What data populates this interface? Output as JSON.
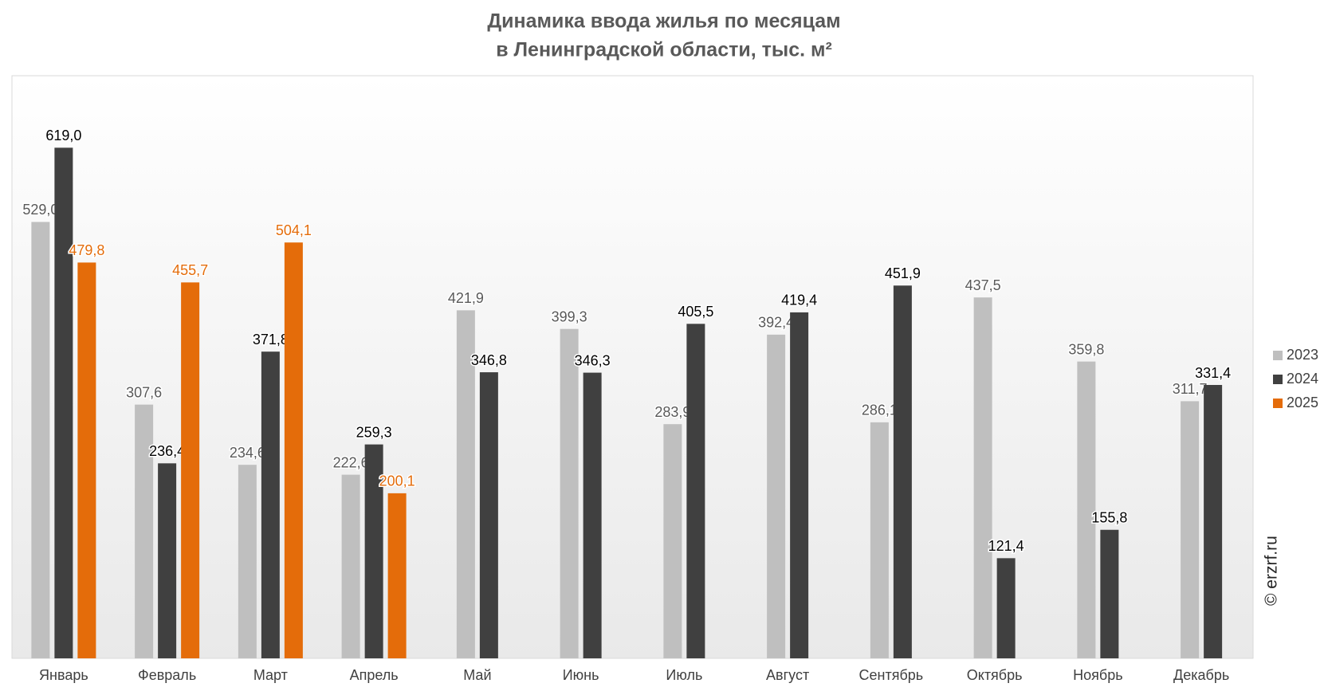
{
  "chart_data": {
    "type": "bar",
    "title": [
      "Динамика ввода жилья по месяцам",
      "в Ленинградской области, тыс. м²"
    ],
    "categories": [
      "Январь",
      "Февраль",
      "Март",
      "Апрель",
      "Май",
      "Июнь",
      "Июль",
      "Август",
      "Сентябрь",
      "Октябрь",
      "Ноябрь",
      "Декабрь"
    ],
    "series": [
      {
        "name": "2023",
        "color": "#bfbfbf",
        "label_color": "#595959",
        "values": [
          529.0,
          307.6,
          234.6,
          222.6,
          421.9,
          399.3,
          283.9,
          392.4,
          286.1,
          437.5,
          359.8,
          311.7
        ],
        "value_labels": [
          "529,0",
          "307,6",
          "234,6",
          "222,6",
          "421,9",
          "399,3",
          "283,9",
          "392,4",
          "286,1",
          "437,5",
          "359,8",
          "311,7"
        ]
      },
      {
        "name": "2024",
        "color": "#404040",
        "label_color": "#000000",
        "values": [
          619.0,
          236.4,
          371.8,
          259.3,
          346.8,
          346.3,
          405.5,
          419.4,
          451.9,
          121.4,
          155.8,
          331.4
        ],
        "value_labels": [
          "619,0",
          "236,4",
          "371,8",
          "259,3",
          "346,8",
          "346,3",
          "405,5",
          "419,4",
          "451,9",
          "121,4",
          "155,8",
          "331,4"
        ]
      },
      {
        "name": "2025",
        "color": "#e46c0a",
        "label_color": "#e46c0a",
        "values": [
          479.8,
          455.7,
          504.1,
          200.1,
          null,
          null,
          null,
          null,
          null,
          null,
          null,
          null
        ],
        "value_labels": [
          "479,8",
          "455,7",
          "504,1",
          "200,1",
          null,
          null,
          null,
          null,
          null,
          null,
          null,
          null
        ]
      }
    ],
    "legend": "right",
    "annotations": [
      "© erzrf.ru"
    ]
  }
}
